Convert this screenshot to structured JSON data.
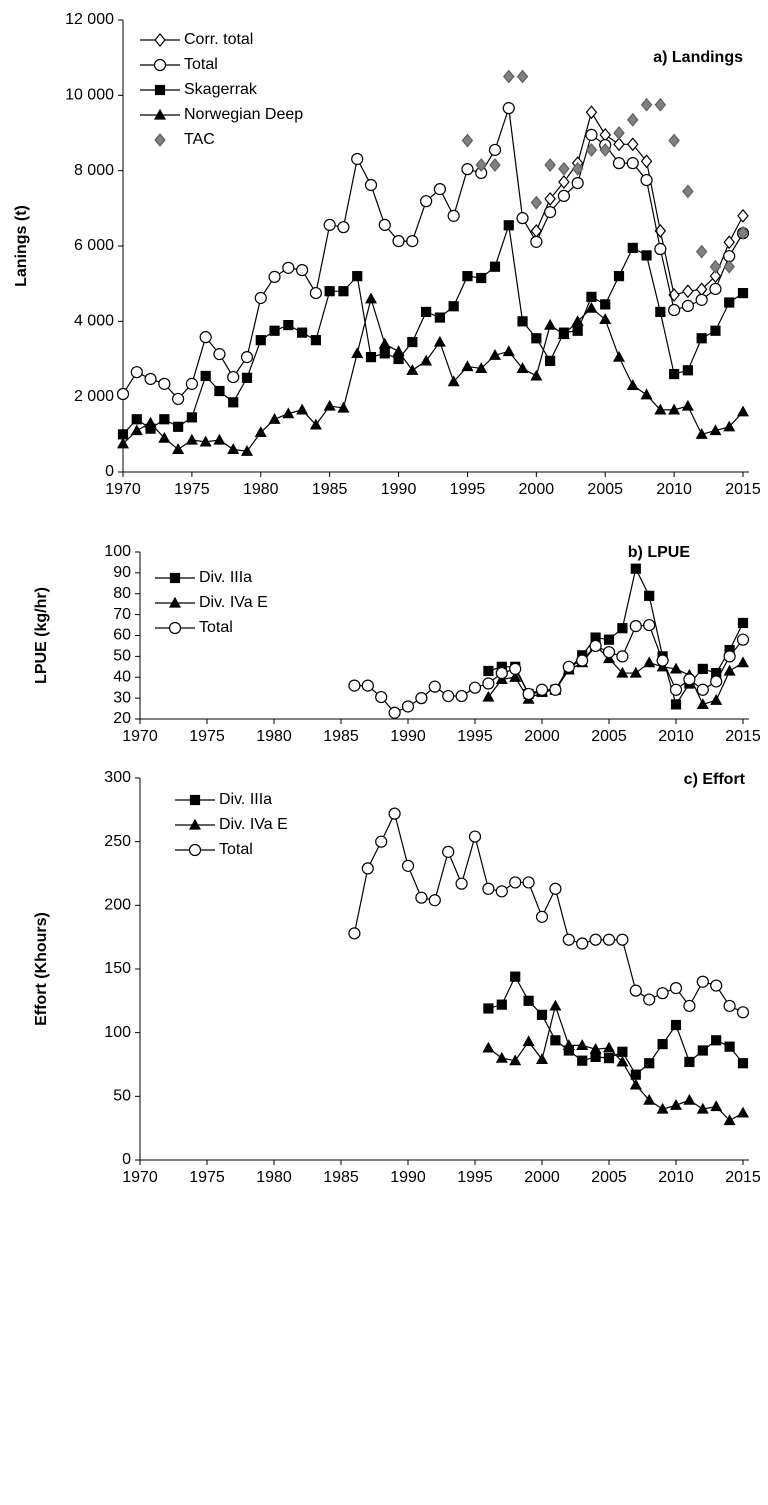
{
  "chart_data": [
    {
      "type": "line",
      "title": "a) Landings",
      "y_label": "Lanings (t)",
      "x": [
        1970,
        1971,
        1972,
        1973,
        1974,
        1975,
        1976,
        1977,
        1978,
        1979,
        1980,
        1981,
        1982,
        1983,
        1984,
        1985,
        1986,
        1987,
        1988,
        1989,
        1990,
        1991,
        1992,
        1993,
        1994,
        1995,
        1996,
        1997,
        1998,
        1999,
        2000,
        2001,
        2002,
        2003,
        2004,
        2005,
        2006,
        2007,
        2008,
        2009,
        2010,
        2011,
        2012,
        2013,
        2014,
        2015
      ],
      "series": [
        {
          "name": "Corr. total",
          "color": "#000000",
          "marker": "open-diamond",
          "line": true,
          "values": [
            null,
            null,
            null,
            null,
            null,
            null,
            null,
            null,
            null,
            null,
            null,
            null,
            null,
            null,
            null,
            null,
            null,
            null,
            null,
            null,
            null,
            null,
            null,
            null,
            null,
            null,
            null,
            null,
            null,
            null,
            6400,
            7250,
            7700,
            8200,
            9550,
            8950,
            8700,
            8700,
            8250,
            6400,
            4700,
            4800,
            4850,
            5200,
            6100,
            6800
          ]
        },
        {
          "name": "Total",
          "color": "#000000",
          "marker": "open-circle",
          "line": true,
          "values": [
            2070,
            2650,
            2470,
            2340,
            1940,
            2340,
            3580,
            3130,
            2520,
            3050,
            4620,
            5180,
            5420,
            5360,
            4750,
            6560,
            6500,
            8310,
            7620,
            6560,
            6130,
            6130,
            7190,
            7510,
            6800,
            8040,
            7940,
            8550,
            9660,
            6740,
            6110,
            6900,
            7330,
            7670,
            8950,
            8680,
            8200,
            8200,
            7750,
            5920,
            4300,
            4410,
            4570,
            4860,
            5730,
            6340
          ]
        },
        {
          "name": "Skagerrak",
          "color": "#000000",
          "marker": "square",
          "line": true,
          "values": [
            1000,
            1400,
            1150,
            1400,
            1200,
            1450,
            2550,
            2150,
            1850,
            2500,
            3500,
            3750,
            3900,
            3700,
            3500,
            4800,
            4800,
            5200,
            3050,
            3150,
            3000,
            3450,
            4250,
            4100,
            4400,
            5200,
            5150,
            5450,
            6550,
            4000,
            3550,
            2950,
            3700,
            3750,
            4650,
            4450,
            5200,
            5950,
            5750,
            4250,
            2600,
            2700,
            3550,
            3750,
            4500,
            4750
          ]
        },
        {
          "name": "Norwegian Deep",
          "color": "#000000",
          "marker": "triangle",
          "line": true,
          "values": [
            750,
            1100,
            1300,
            900,
            600,
            850,
            800,
            850,
            600,
            550,
            1050,
            1400,
            1550,
            1650,
            1250,
            1750,
            1700,
            3150,
            4600,
            3400,
            3200,
            2700,
            2950,
            3450,
            2400,
            2800,
            2750,
            3100,
            3200,
            2750,
            2550,
            3900,
            3650,
            4000,
            4350,
            4050,
            3050,
            2300,
            2050,
            1650,
            1650,
            1750,
            1000,
            1100,
            1200,
            1600
          ]
        },
        {
          "name": "TAC",
          "color": "#808080",
          "marker": "diamond",
          "line": false,
          "values": [
            null,
            null,
            null,
            null,
            null,
            null,
            null,
            null,
            null,
            null,
            null,
            null,
            null,
            null,
            null,
            null,
            null,
            null,
            null,
            null,
            null,
            null,
            null,
            null,
            null,
            8800,
            8150,
            8150,
            10500,
            10500,
            7150,
            8150,
            8050,
            8050,
            8550,
            8550,
            9000,
            9350,
            9750,
            9750,
            8800,
            7450,
            5850,
            5450,
            5450,
            6350
          ]
        }
      ],
      "xlim": [
        1970,
        2015
      ],
      "xticks": [
        1970,
        1975,
        1980,
        1985,
        1990,
        1995,
        2000,
        2005,
        2010,
        2015
      ],
      "ylim": [
        0,
        12000
      ],
      "yticks": [
        0,
        {
          "value": 2000,
          "label": "2 000"
        },
        {
          "value": 4000,
          "label": "4 000"
        },
        {
          "value": 6000,
          "label": "6 000"
        },
        {
          "value": 8000,
          "label": "8 000"
        },
        {
          "value": 10000,
          "label": "10 000"
        },
        {
          "value": 12000,
          "label": "12 000"
        }
      ],
      "legend": "top-left"
    },
    {
      "type": "line",
      "title": "b) LPUE",
      "y_label": "LPUE (kg/hr)",
      "x": [
        1986,
        1987,
        1988,
        1989,
        1990,
        1991,
        1992,
        1993,
        1994,
        1995,
        1996,
        1997,
        1998,
        1999,
        2000,
        2001,
        2002,
        2003,
        2004,
        2005,
        2006,
        2007,
        2008,
        2009,
        2010,
        2011,
        2012,
        2013,
        2014,
        2015
      ],
      "series": [
        {
          "name": "Div. IIIa",
          "color": "#000000",
          "marker": "square",
          "line": true,
          "values": [
            null,
            null,
            null,
            null,
            null,
            null,
            null,
            null,
            null,
            null,
            43,
            45,
            45,
            32,
            33,
            34,
            44,
            50.5,
            59,
            58,
            63.5,
            92,
            79,
            50,
            27,
            37,
            44,
            42,
            53,
            66
          ]
        },
        {
          "name": "Div. IVa E",
          "color": "#000000",
          "marker": "triangle",
          "line": true,
          "values": [
            null,
            null,
            null,
            null,
            null,
            null,
            null,
            null,
            null,
            null,
            30.5,
            39,
            40,
            29.5,
            33,
            34,
            43.5,
            47,
            55,
            49,
            42,
            42,
            47,
            45,
            44,
            41,
            27,
            29,
            43,
            47
          ]
        },
        {
          "name": "Total",
          "color": "#000000",
          "marker": "open-circle",
          "line": true,
          "values": [
            36,
            36,
            30.5,
            23,
            26,
            30,
            35.5,
            31,
            31,
            35,
            37,
            42,
            44,
            32,
            34,
            34,
            45,
            48,
            55,
            52,
            50,
            64.5,
            65,
            48,
            34,
            39,
            34,
            38,
            50,
            58
          ]
        }
      ],
      "xlim": [
        1970,
        2015
      ],
      "xticks": [
        1970,
        1975,
        1980,
        1985,
        1990,
        1995,
        2000,
        2005,
        2010,
        2015
      ],
      "ylim": [
        20,
        100
      ],
      "yticks": [
        20,
        30,
        40,
        50,
        60,
        70,
        80,
        90,
        100
      ],
      "legend": "top-left"
    },
    {
      "type": "line",
      "title": "c) Effort",
      "y_label": "Effort (Khours)",
      "x": [
        1986,
        1987,
        1988,
        1989,
        1990,
        1991,
        1992,
        1993,
        1994,
        1995,
        1996,
        1997,
        1998,
        1999,
        2000,
        2001,
        2002,
        2003,
        2004,
        2005,
        2006,
        2007,
        2008,
        2009,
        2010,
        2011,
        2012,
        2013,
        2014,
        2015
      ],
      "series": [
        {
          "name": "Div. IIIa",
          "color": "#000000",
          "marker": "square",
          "line": true,
          "values": [
            null,
            null,
            null,
            null,
            null,
            null,
            null,
            null,
            null,
            null,
            119,
            122,
            144,
            125,
            114,
            94,
            86,
            78,
            81,
            80,
            85,
            67,
            76,
            91,
            106,
            77,
            86,
            94,
            89,
            76
          ]
        },
        {
          "name": "Div. IVa E",
          "color": "#000000",
          "marker": "triangle",
          "line": true,
          "values": [
            null,
            null,
            null,
            null,
            null,
            null,
            null,
            null,
            null,
            null,
            88,
            80,
            78,
            93,
            79,
            121,
            90,
            90,
            87,
            88,
            77,
            59,
            47,
            40,
            43,
            47,
            40,
            42,
            31,
            37
          ]
        },
        {
          "name": "Total",
          "color": "#000000",
          "marker": "open-circle",
          "line": true,
          "values": [
            178,
            229,
            250,
            272,
            231,
            206,
            204,
            242,
            217,
            254,
            213,
            211,
            218,
            218,
            191,
            213,
            173,
            170,
            173,
            173,
            173,
            133,
            126,
            131,
            135,
            121,
            140,
            137,
            121,
            116
          ]
        }
      ],
      "xlim": [
        1970,
        2015
      ],
      "xticks": [
        1970,
        1975,
        1980,
        1985,
        1990,
        1995,
        2000,
        2005,
        2010,
        2015
      ],
      "ylim": [
        0,
        300
      ],
      "yticks": [
        0,
        50,
        100,
        150,
        200,
        250,
        300
      ],
      "legend": "top-left"
    }
  ]
}
